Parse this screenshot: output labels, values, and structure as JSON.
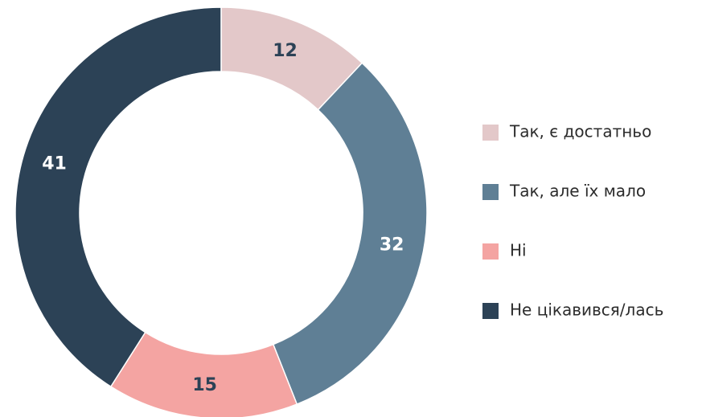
{
  "chart_data": {
    "type": "donut",
    "categories": [
      "Так, є достатньо",
      "Так, але їх мало",
      "Ні",
      "Не цікавився/лась"
    ],
    "values": [
      12,
      32,
      15,
      41
    ],
    "colors": [
      "#e3c8c9",
      "#5f7f95",
      "#f4a4a2",
      "#2c4256"
    ],
    "label_colors": [
      "#2c4256",
      "#ffffff",
      "#2c4256",
      "#ffffff"
    ],
    "legend": "right"
  }
}
